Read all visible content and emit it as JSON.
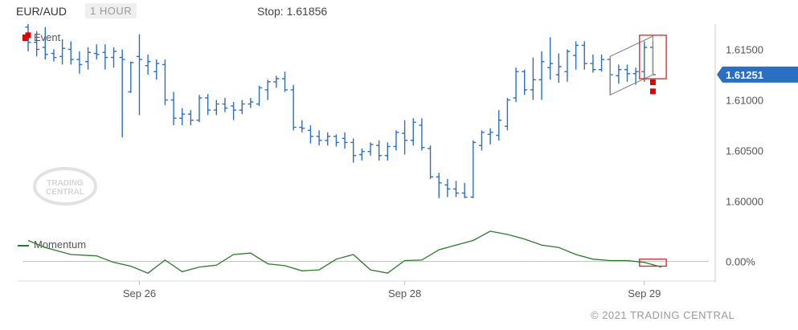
{
  "header": {
    "symbol": "EUR/AUD",
    "timeframe": "1 HOUR",
    "stop_label": "Stop: 1.61856"
  },
  "legend": {
    "event": "Event",
    "momentum": "Momentum"
  },
  "copyright": "© 2021 TRADING CENTRAL",
  "watermark": {
    "line1": "TRADING",
    "line2": "CENTRAL"
  },
  "colors": {
    "bar": "#2a6fc4",
    "event": "#e00000",
    "momentum": "#2a7a2a",
    "zero_line": "#9fd49f",
    "channel": "#8a8a8a",
    "price_tag": "#2a6fc4"
  },
  "chart_data": [
    {
      "type": "ohlc",
      "title": "EUR/AUD",
      "xlabel": "",
      "ylabel": "",
      "ylim": [
        1.5975,
        1.6175
      ],
      "x_ticks": [
        {
          "label": "Sep 26",
          "index": 13
        },
        {
          "label": "Sep 28",
          "index": 44
        },
        {
          "label": "Sep 29",
          "index": 72
        }
      ],
      "y_ticks": [
        "1.60000",
        "1.60500",
        "1.61000",
        "1.61500"
      ],
      "y_tick_values": [
        1.6,
        1.605,
        1.61,
        1.615
      ],
      "current_price_label": "1.61251",
      "current_price": 1.61251,
      "series": [
        {
          "values": [
            [
              1.6172,
              1.6175,
              1.6148,
              1.6157
            ],
            [
              1.6157,
              1.6168,
              1.6143,
              1.615
            ],
            [
              1.6152,
              1.6172,
              1.614,
              1.6145
            ],
            [
              1.6146,
              1.615,
              1.6138,
              1.6142
            ],
            [
              1.6143,
              1.616,
              1.6135,
              1.6151
            ],
            [
              1.615,
              1.6158,
              1.6135,
              1.614
            ],
            [
              1.614,
              1.6148,
              1.6126,
              1.6135
            ],
            [
              1.6138,
              1.6152,
              1.613,
              1.6147
            ],
            [
              1.6146,
              1.6155,
              1.614,
              1.6145
            ],
            [
              1.6147,
              1.6155,
              1.613,
              1.6142
            ],
            [
              1.6142,
              1.6152,
              1.6132,
              1.6148
            ],
            [
              1.6142,
              1.615,
              1.6063,
              1.614
            ],
            [
              1.6108,
              1.6138,
              1.6107,
              1.6137
            ],
            [
              1.6143,
              1.6165,
              1.6085,
              1.614
            ],
            [
              1.6134,
              1.6145,
              1.6125,
              1.6138
            ],
            [
              1.6128,
              1.614,
              1.612,
              1.6136
            ],
            [
              1.6135,
              1.614,
              1.6095,
              1.61
            ],
            [
              1.61,
              1.6108,
              1.6075,
              1.6082
            ],
            [
              1.6082,
              1.6092,
              1.6075,
              1.6086
            ],
            [
              1.6086,
              1.609,
              1.6075,
              1.608
            ],
            [
              1.608,
              1.6105,
              1.6078,
              1.6102
            ],
            [
              1.6102,
              1.6106,
              1.6085,
              1.609
            ],
            [
              1.609,
              1.61,
              1.6085,
              1.6096
            ],
            [
              1.6096,
              1.6102,
              1.6088,
              1.6092
            ],
            [
              1.6094,
              1.6098,
              1.608,
              1.609
            ],
            [
              1.609,
              1.61,
              1.6086,
              1.6096
            ],
            [
              1.6096,
              1.6102,
              1.6092,
              1.6098
            ],
            [
              1.6096,
              1.6114,
              1.6094,
              1.6112
            ],
            [
              1.611,
              1.612,
              1.61,
              1.6118
            ],
            [
              1.6118,
              1.6124,
              1.6112,
              1.6121
            ],
            [
              1.6121,
              1.6128,
              1.6108,
              1.611
            ],
            [
              1.611,
              1.6115,
              1.607,
              1.6073
            ],
            [
              1.6073,
              1.608,
              1.6068,
              1.6072
            ],
            [
              1.607,
              1.6075,
              1.6057,
              1.6064
            ],
            [
              1.6064,
              1.607,
              1.6055,
              1.606
            ],
            [
              1.606,
              1.6068,
              1.6055,
              1.6064
            ],
            [
              1.6064,
              1.6066,
              1.6054,
              1.6058
            ],
            [
              1.6062,
              1.6068,
              1.6052,
              1.6058
            ],
            [
              1.6058,
              1.6062,
              1.6038,
              1.6045
            ],
            [
              1.6046,
              1.6052,
              1.604,
              1.6049
            ],
            [
              1.6049,
              1.6058,
              1.6045,
              1.6056
            ],
            [
              1.6055,
              1.606,
              1.604,
              1.6045
            ],
            [
              1.6045,
              1.6058,
              1.604,
              1.6054
            ],
            [
              1.6054,
              1.607,
              1.605,
              1.6068
            ],
            [
              1.6067,
              1.608,
              1.6046,
              1.606
            ],
            [
              1.606,
              1.6082,
              1.6055,
              1.6078
            ],
            [
              1.6075,
              1.6082,
              1.605,
              1.6053
            ],
            [
              1.6052,
              1.6055,
              1.6022,
              1.6024
            ],
            [
              1.6024,
              1.6028,
              1.6003,
              1.6018
            ],
            [
              1.6016,
              1.6022,
              1.6004,
              1.6012
            ],
            [
              1.6012,
              1.602,
              1.6004,
              1.6008
            ],
            [
              1.6008,
              1.6018,
              1.6003,
              1.6004
            ],
            [
              1.6004,
              1.606,
              1.6003,
              1.6058
            ],
            [
              1.6055,
              1.607,
              1.605,
              1.6068
            ],
            [
              1.6066,
              1.6072,
              1.6056,
              1.6068
            ],
            [
              1.6065,
              1.609,
              1.606,
              1.608
            ],
            [
              1.6074,
              1.6102,
              1.607,
              1.61
            ],
            [
              1.6102,
              1.6132,
              1.6098,
              1.6128
            ],
            [
              1.6128,
              1.613,
              1.6105,
              1.611
            ],
            [
              1.611,
              1.6142,
              1.61,
              1.612
            ],
            [
              1.612,
              1.6148,
              1.61,
              1.6138
            ],
            [
              1.6132,
              1.6162,
              1.612,
              1.6136
            ],
            [
              1.6125,
              1.6146,
              1.6117,
              1.6133
            ],
            [
              1.6128,
              1.615,
              1.6118,
              1.6148
            ],
            [
              1.6144,
              1.6158,
              1.613,
              1.6154
            ],
            [
              1.6154,
              1.6158,
              1.613,
              1.6136
            ],
            [
              1.6136,
              1.6145,
              1.6127,
              1.613
            ],
            [
              1.613,
              1.6145,
              1.6128,
              1.614
            ],
            [
              1.614,
              1.6142,
              1.6105,
              1.6125
            ],
            [
              1.6124,
              1.6135,
              1.6116,
              1.613
            ],
            [
              1.613,
              1.6135,
              1.6118,
              1.6126
            ],
            [
              1.6126,
              1.6132,
              1.6115,
              1.6128
            ],
            [
              1.6128,
              1.6158,
              1.6118,
              1.6152
            ],
            [
              1.6152,
              1.6158,
              1.6125,
              1.6125
            ]
          ]
        }
      ],
      "events": [
        {
          "index": 0,
          "value": 1.6164
        },
        {
          "index": 73,
          "value": 1.61175
        },
        {
          "index": 73,
          "value": 1.61085
        }
      ],
      "channel": {
        "upper": [
          {
            "index": 68,
            "value": 1.6143
          },
          {
            "index": 73,
            "value": 1.6163
          }
        ],
        "lower": [
          {
            "index": 68,
            "value": 1.6105
          },
          {
            "index": 73,
            "value": 1.6125
          }
        ]
      },
      "highlight": {
        "index_from": 72,
        "index_to": 74,
        "value_from": 1.6164,
        "value_to": 1.6121
      }
    },
    {
      "type": "line",
      "title": "Momentum",
      "xlabel": "",
      "ylabel": "",
      "ylim": [
        -0.0035,
        0.007
      ],
      "y_ticks": [
        "0.00%"
      ],
      "y_tick_values": [
        0
      ],
      "zero_line": true,
      "series": [
        {
          "name": "Momentum",
          "x": [
            0,
            2,
            5,
            8,
            10,
            12,
            14,
            16,
            18,
            20,
            22,
            24,
            26,
            28,
            30,
            32,
            34,
            36,
            38,
            40,
            42,
            44,
            46,
            48,
            50,
            52,
            54,
            56,
            58,
            60,
            62,
            64,
            66,
            68,
            70,
            72,
            74
          ],
          "values": [
            0.0045,
            0.003,
            0.0015,
            0.0012,
            -0.0002,
            -0.001,
            -0.0025,
            0.0003,
            -0.0022,
            -0.0012,
            -0.0008,
            0.0015,
            0.0018,
            -0.0005,
            -0.0009,
            -0.002,
            -0.0018,
            0.0005,
            0.0015,
            -0.0018,
            -0.0025,
            0.0002,
            0.0003,
            0.0025,
            0.0035,
            0.0045,
            0.0065,
            0.0058,
            0.0048,
            0.0035,
            0.003,
            0.0015,
            0.0005,
            0.0002,
            0.0002,
            -0.0002,
            -0.0012
          ]
        }
      ],
      "highlight": {
        "index_from": 72,
        "index_to": 74,
        "value_from": 0.0005,
        "value_to": -0.001
      }
    }
  ]
}
